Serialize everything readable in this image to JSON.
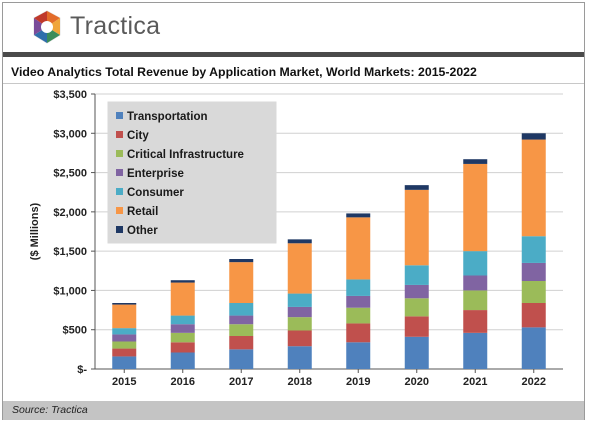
{
  "brand": {
    "name": "Tractica"
  },
  "chart_data": {
    "type": "bar",
    "stacked": true,
    "title": "Video Analytics Total Revenue by Application Market, World Markets: 2015-2022",
    "xlabel": "",
    "ylabel": "($ Millions)",
    "ylim": [
      0,
      3500
    ],
    "yticks": [
      0,
      500,
      1000,
      1500,
      2000,
      2500,
      3000,
      3500
    ],
    "ytick_labels": [
      "$-",
      "$500",
      "$1,000",
      "$1,500",
      "$2,000",
      "$2,500",
      "$3,000",
      "$3,500"
    ],
    "categories": [
      "2015",
      "2016",
      "2017",
      "2018",
      "2019",
      "2020",
      "2021",
      "2022"
    ],
    "grid": true,
    "legend_position": "top-left",
    "series": [
      {
        "name": "Transportation",
        "color": "#4f81bd",
        "values": [
          160,
          210,
          250,
          290,
          340,
          410,
          460,
          530
        ]
      },
      {
        "name": "City",
        "color": "#c0504d",
        "values": [
          100,
          130,
          170,
          200,
          240,
          260,
          290,
          310
        ]
      },
      {
        "name": "Critical Infrastructure",
        "color": "#9bbb59",
        "values": [
          90,
          120,
          150,
          170,
          200,
          230,
          250,
          280
        ]
      },
      {
        "name": "Enterprise",
        "color": "#8064a2",
        "values": [
          90,
          110,
          110,
          130,
          150,
          170,
          190,
          230
        ]
      },
      {
        "name": "Consumer",
        "color": "#4bacc6",
        "values": [
          80,
          110,
          160,
          170,
          210,
          250,
          310,
          340
        ]
      },
      {
        "name": "Retail",
        "color": "#f79646",
        "values": [
          300,
          420,
          520,
          640,
          790,
          960,
          1110,
          1230
        ]
      },
      {
        "name": "Other",
        "color": "#1f3864",
        "values": [
          20,
          30,
          40,
          50,
          50,
          60,
          60,
          80
        ]
      }
    ]
  },
  "footer": {
    "source": "Source: Tractica"
  }
}
